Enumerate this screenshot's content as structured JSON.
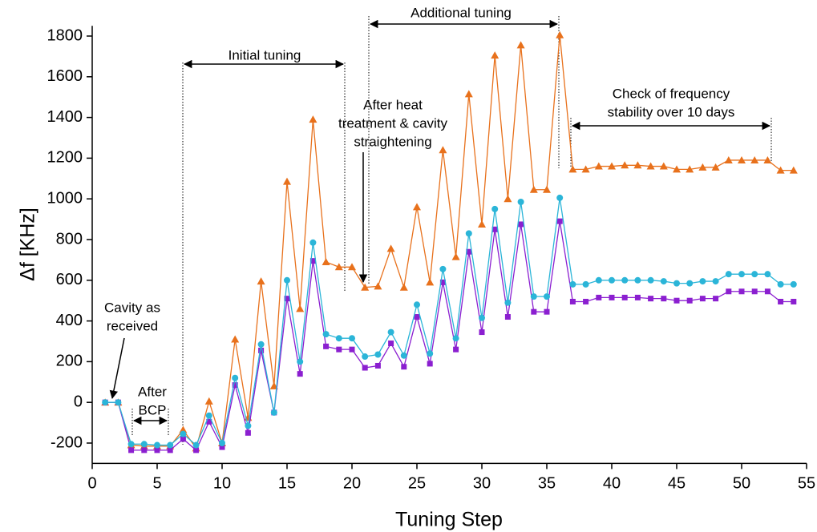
{
  "chart_data": {
    "type": "line",
    "xlabel": "Tuning Step",
    "ylabel": "Δf [KHz]",
    "x": [
      1,
      2,
      3,
      4,
      5,
      6,
      7,
      8,
      9,
      10,
      11,
      12,
      13,
      14,
      15,
      16,
      17,
      18,
      19,
      20,
      21,
      22,
      23,
      24,
      25,
      26,
      27,
      28,
      29,
      30,
      31,
      32,
      33,
      34,
      35,
      36,
      37,
      38,
      39,
      40,
      41,
      42,
      43,
      44,
      45,
      46,
      47,
      48,
      49,
      50,
      51,
      52,
      53,
      54
    ],
    "series": [
      {
        "color": "#e8711c",
        "marker": "triangle",
        "values": [
          0,
          0,
          -210,
          -215,
          -215,
          -215,
          -135,
          -225,
          5,
          -200,
          310,
          -75,
          595,
          80,
          1085,
          460,
          1390,
          690,
          665,
          665,
          565,
          570,
          755,
          565,
          960,
          590,
          1240,
          715,
          1515,
          875,
          1705,
          1000,
          1755,
          1045,
          1045,
          1805,
          1145,
          1145,
          1160,
          1160,
          1165,
          1165,
          1160,
          1160,
          1145,
          1145,
          1155,
          1155,
          1190,
          1190,
          1190,
          1190,
          1140,
          1140
        ]
      },
      {
        "color": "#8b1fd0",
        "marker": "square",
        "values": [
          0,
          0,
          -235,
          -235,
          -235,
          -235,
          -180,
          -235,
          -95,
          -220,
          85,
          -150,
          255,
          -50,
          510,
          140,
          695,
          275,
          260,
          260,
          170,
          180,
          290,
          175,
          420,
          190,
          590,
          260,
          740,
          345,
          850,
          420,
          875,
          445,
          445,
          890,
          495,
          495,
          515,
          515,
          515,
          515,
          510,
          510,
          500,
          500,
          510,
          510,
          545,
          545,
          545,
          545,
          495,
          495
        ]
      },
      {
        "color": "#2bb5d8",
        "marker": "circle",
        "values": [
          0,
          0,
          -205,
          -205,
          -210,
          -210,
          -155,
          -210,
          -65,
          -200,
          120,
          -115,
          285,
          -50,
          600,
          200,
          785,
          335,
          315,
          315,
          225,
          235,
          345,
          230,
          480,
          240,
          655,
          315,
          830,
          415,
          950,
          490,
          985,
          520,
          520,
          1005,
          580,
          580,
          600,
          600,
          600,
          600,
          600,
          595,
          585,
          585,
          595,
          595,
          630,
          630,
          630,
          630,
          580,
          580
        ]
      }
    ],
    "xlim": [
      0,
      55
    ],
    "xticks": [
      0,
      5,
      10,
      15,
      20,
      25,
      30,
      35,
      40,
      45,
      50,
      55
    ],
    "ylim": [
      -300,
      1850
    ],
    "yticks": [
      -200,
      0,
      200,
      400,
      600,
      800,
      1000,
      1200,
      1400,
      1600,
      1800
    ],
    "annotations": [
      {
        "lines": [
          "Cavity as",
          "received"
        ]
      },
      {
        "lines": [
          "After",
          "BCP"
        ]
      },
      {
        "lines": [
          "Initial tuning"
        ]
      },
      {
        "lines": [
          "After heat",
          "treatment & cavity",
          "straightening"
        ]
      },
      {
        "lines": [
          "Additional tuning"
        ]
      },
      {
        "lines": [
          "Check of frequency",
          "stability over 10 days"
        ]
      }
    ]
  }
}
